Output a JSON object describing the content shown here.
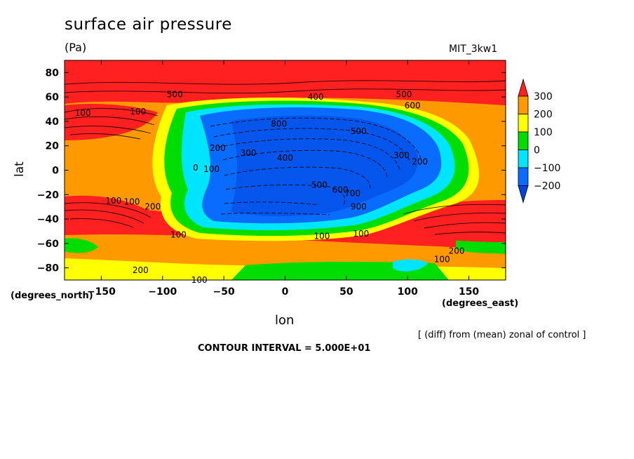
{
  "title": "surface air pressure",
  "units": "(Pa)",
  "model": "MIT_3kw1",
  "ylabel": "lat",
  "ylabel_units": "(degrees_north)",
  "xlabel": "lon",
  "xlabel_units": "(degrees_east)",
  "note": "[ (diff) from (mean) zonal of control ]",
  "contour_interval": "CONTOUR INTERVAL = 5.000E+01",
  "chart_data": {
    "type": "heatmap",
    "x_range": [
      -180,
      180
    ],
    "y_range": [
      -90,
      90
    ],
    "x_ticks": [
      -150,
      -100,
      -50,
      0,
      50,
      100,
      150
    ],
    "y_ticks": [
      80,
      60,
      40,
      20,
      0,
      -20,
      -40,
      -60,
      -80
    ],
    "colorbar": {
      "levels": [
        300,
        200,
        100,
        0,
        -100,
        -200
      ],
      "colors": [
        "#ff2020",
        "#ff9900",
        "#ffff00",
        "#00dd00",
        "#00e5ff",
        "#0a6cff",
        "#0044dd"
      ]
    },
    "contour_labels": [
      {
        "text": "500",
        "lon": -90,
        "lat": 62
      },
      {
        "text": "400",
        "lon": 25,
        "lat": 60
      },
      {
        "text": "500",
        "lon": 97,
        "lat": 62
      },
      {
        "text": "600",
        "lon": 104,
        "lat": 53
      },
      {
        "text": "100",
        "lon": -120,
        "lat": 48
      },
      {
        "text": "100",
        "lon": -165,
        "lat": 47
      },
      {
        "text": "800",
        "lon": -5,
        "lat": 38
      },
      {
        "text": "500",
        "lon": 60,
        "lat": 32
      },
      {
        "text": "200",
        "lon": -55,
        "lat": 18
      },
      {
        "text": "300",
        "lon": -30,
        "lat": 14
      },
      {
        "text": "400",
        "lon": 0,
        "lat": 10
      },
      {
        "text": "300",
        "lon": 95,
        "lat": 12
      },
      {
        "text": "200",
        "lon": 110,
        "lat": 7
      },
      {
        "text": "0",
        "lon": -73,
        "lat": 2
      },
      {
        "text": "100",
        "lon": -60,
        "lat": 1
      },
      {
        "text": "500",
        "lon": 28,
        "lat": -12
      },
      {
        "text": "600",
        "lon": 45,
        "lat": -16
      },
      {
        "text": "700",
        "lon": 55,
        "lat": -19
      },
      {
        "text": "100",
        "lon": -140,
        "lat": -25
      },
      {
        "text": "100",
        "lon": -125,
        "lat": -26
      },
      {
        "text": "200",
        "lon": -108,
        "lat": -30
      },
      {
        "text": "900",
        "lon": 60,
        "lat": -30
      },
      {
        "text": "100",
        "lon": -87,
        "lat": -53
      },
      {
        "text": "100",
        "lon": 30,
        "lat": -54
      },
      {
        "text": "100",
        "lon": 62,
        "lat": -52
      },
      {
        "text": "200",
        "lon": 140,
        "lat": -66
      },
      {
        "text": "100",
        "lon": 128,
        "lat": -73
      },
      {
        "text": "200",
        "lon": -118,
        "lat": -82
      },
      {
        "text": "100",
        "lon": -70,
        "lat": -90
      }
    ]
  }
}
